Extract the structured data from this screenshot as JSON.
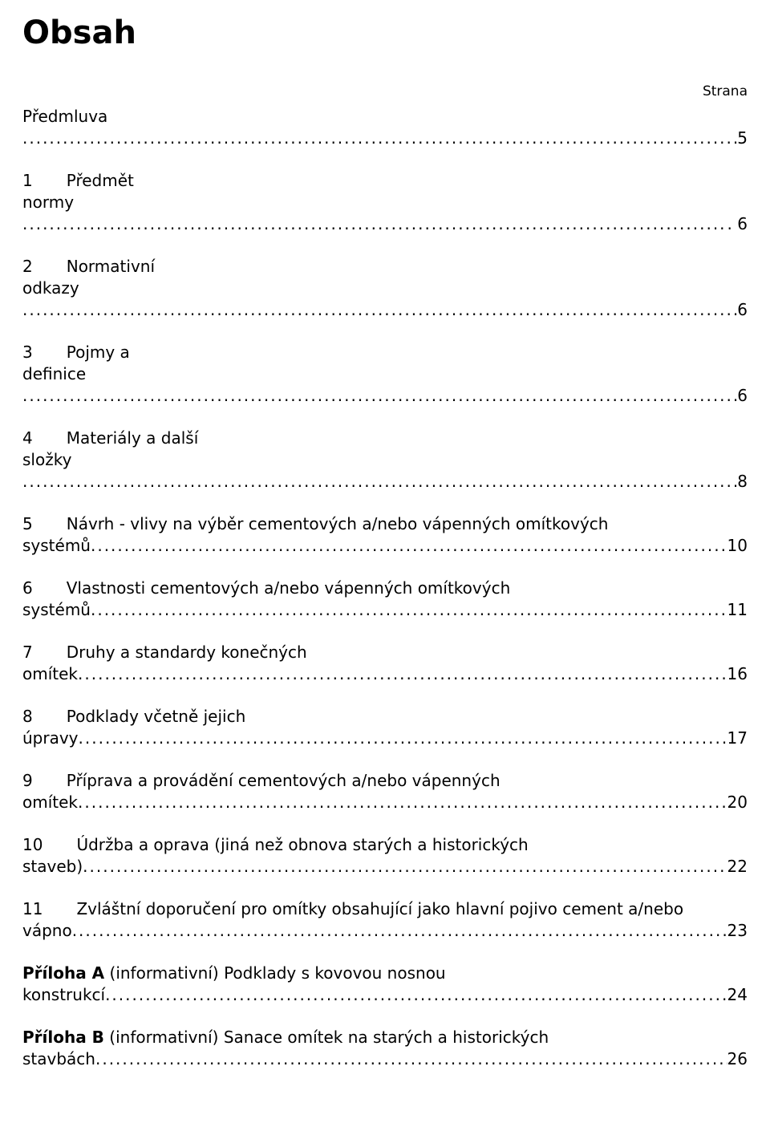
{
  "typography": {
    "title_fontsize_pt": 30,
    "body_fontsize_pt": 15,
    "strana_fontsize_pt": 13,
    "font_family": "DejaVu Sans, Verdana, Arial, sans-serif",
    "text_color": "#000000",
    "background_color": "#ffffff"
  },
  "title": "Obsah",
  "strana_label": "Strana",
  "dots": "..................................................................................................................................................................................................................................................",
  "entries": [
    {
      "num": "",
      "label_first": "Předmluva",
      "label_rest": "",
      "lead": "",
      "page": " 5",
      "bold": false
    },
    {
      "num": "1",
      "label_first": "Předmět",
      "label_rest": "normy",
      "lead": "",
      "page": ". 6",
      "bold": false
    },
    {
      "num": "2",
      "label_first": "Normativní",
      "label_rest": "odkazy",
      "lead": "",
      "page": " 6",
      "bold": false
    },
    {
      "num": "3",
      "label_first": "Pojmy a",
      "label_rest": "definice",
      "lead": "",
      "page": " 6",
      "bold": false
    },
    {
      "num": "4",
      "label_first": "Materiály a další",
      "label_rest": "složky",
      "lead": "",
      "page": " 8",
      "bold": false
    },
    {
      "num": "5",
      "label_first": "Návrh - vlivy na výběr cementových a/nebo vápenných omítkových",
      "label_rest": "",
      "lead": "systémů",
      "page": " 10",
      "bold": false
    },
    {
      "num": "6",
      "label_first": "Vlastnosti cementových a/nebo vápenných omítkových",
      "label_rest": "",
      "lead": "systémů",
      "page": " 11",
      "bold": false
    },
    {
      "num": "7",
      "label_first": "Druhy a standardy konečných",
      "label_rest": "",
      "lead": "omítek",
      "page": " 16",
      "bold": false
    },
    {
      "num": "8",
      "label_first": "Podklady včetně jejich",
      "label_rest": "",
      "lead": "úpravy",
      "page": " 17",
      "bold": false
    },
    {
      "num": "9",
      "label_first": "Příprava a provádění cementových a/nebo vápenných",
      "label_rest": "",
      "lead": "omítek",
      "page": " 20",
      "bold": false
    },
    {
      "num": "10",
      "label_first": "Údržba a oprava (jiná než obnova starých a historických",
      "label_rest": "",
      "lead": "staveb)",
      "page": " 22",
      "bold": false
    },
    {
      "num": "11",
      "label_first": "Zvláštní doporučení pro omítky obsahující jako hlavní pojivo cement a/nebo",
      "label_rest": "",
      "lead": "vápno",
      "page": " 23",
      "bold": false
    },
    {
      "num": "",
      "bold_lead": "Příloha A",
      "label_first": " (informativní) Podklady s kovovou nosnou",
      "label_rest": "",
      "lead": "konstrukcí",
      "page": " 24",
      "bold": true
    },
    {
      "num": "",
      "bold_lead": "Příloha B",
      "label_first": " (informativní) Sanace omítek na starých a historických",
      "label_rest": "",
      "lead": "stavbách",
      "page": " 26",
      "bold": true
    }
  ]
}
